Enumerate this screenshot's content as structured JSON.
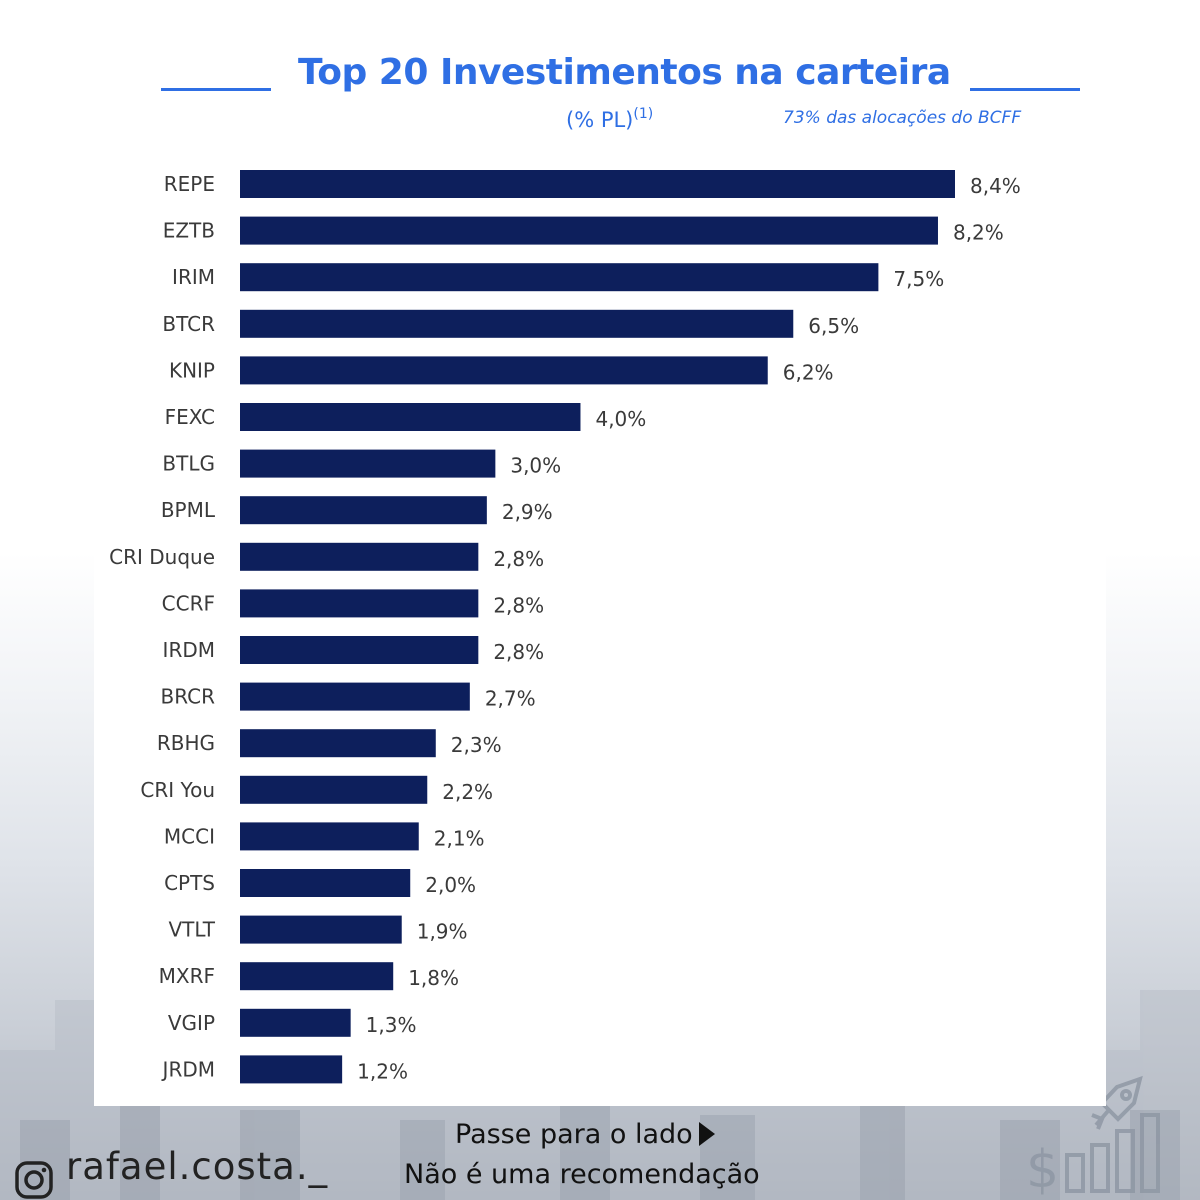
{
  "header": {
    "title": "Top 20 Investimentos na carteira",
    "subtitle": "(% PL)",
    "subtitle_superscript": "(1)",
    "note": "73% das alocações do BCFF"
  },
  "chart_data": {
    "type": "bar",
    "orientation": "horizontal",
    "title": "Top 20 Investimentos na carteira",
    "subtitle": "(% PL)(1)",
    "categories": [
      "REPE",
      "EZTB",
      "IRIM",
      "BTCR",
      "KNIP",
      "FEXC",
      "BTLG",
      "BPML",
      "CRI Duque",
      "CCRF",
      "IRDM",
      "BRCR",
      "RBHG",
      "CRI You",
      "MCCI",
      "CPTS",
      "VTLT",
      "MXRF",
      "VGIP",
      "JRDM"
    ],
    "values": [
      8.4,
      8.2,
      7.5,
      6.5,
      6.2,
      4.0,
      3.0,
      2.9,
      2.8,
      2.8,
      2.8,
      2.7,
      2.3,
      2.2,
      2.1,
      2.0,
      1.9,
      1.8,
      1.3,
      1.2
    ],
    "value_labels": [
      "8,4%",
      "8,2%",
      "7,5%",
      "6,5%",
      "6,2%",
      "4,0%",
      "3,0%",
      "2,9%",
      "2,8%",
      "2,8%",
      "2,8%",
      "2,7%",
      "2,3%",
      "2,2%",
      "2,1%",
      "2,0%",
      "1,9%",
      "1,8%",
      "1,3%",
      "1,2%"
    ],
    "unit": "%",
    "xlim": [
      0,
      8.4
    ],
    "grid": false,
    "bar_color": "#0d1f5c"
  },
  "colors": {
    "accent": "#2f6fe4",
    "bar": "#0d1f5c",
    "label": "#3a3a3a"
  },
  "footer": {
    "handle": "rafael.costa._",
    "handle_icon": "instagram-icon",
    "swipe_text": "Passe para o lado",
    "swipe_icon": "play-arrow-icon",
    "disclaimer": "Não é uma recomendação",
    "decor_icon": "rocket-growth-icon"
  }
}
